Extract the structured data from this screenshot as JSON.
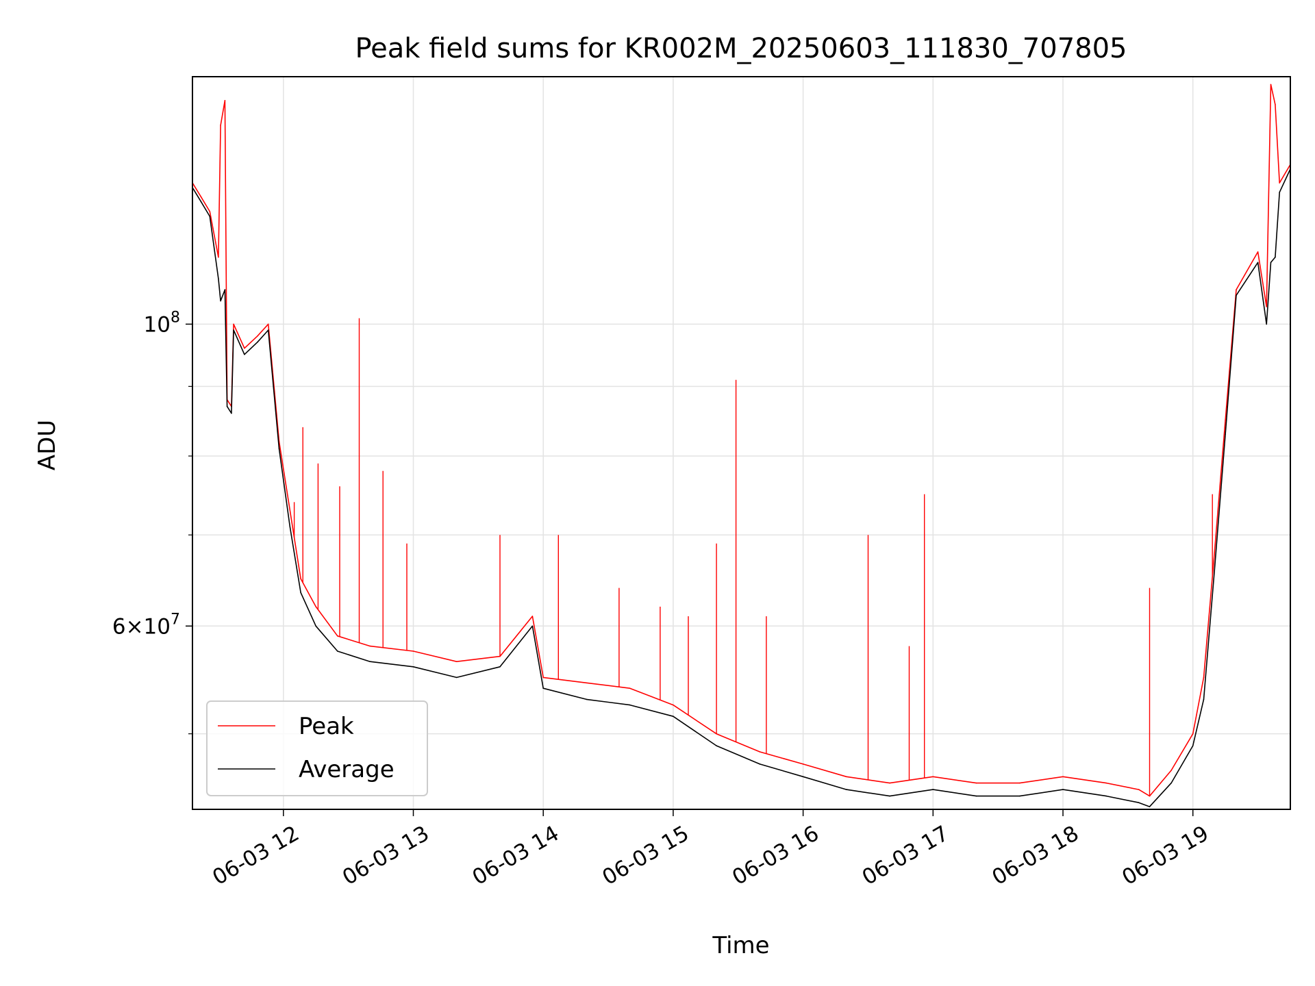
{
  "chart_data": {
    "type": "line",
    "title": "Peak field sums for KR002M_20250603_111830_707805",
    "xlabel": "Time",
    "ylabel": "ADU",
    "y_scale": "log",
    "grid": true,
    "legend_placement": "lower-left",
    "xlim": [
      "2025-06-03 11:18",
      "2025-06-03 19:45"
    ],
    "ylim": [
      44000000,
      152000000
    ],
    "x_ticks": [
      {
        "value": "2025-06-03 12:00",
        "label": "06-03 12"
      },
      {
        "value": "2025-06-03 13:00",
        "label": "06-03 13"
      },
      {
        "value": "2025-06-03 14:00",
        "label": "06-03 14"
      },
      {
        "value": "2025-06-03 15:00",
        "label": "06-03 15"
      },
      {
        "value": "2025-06-03 16:00",
        "label": "06-03 16"
      },
      {
        "value": "2025-06-03 17:00",
        "label": "06-03 17"
      },
      {
        "value": "2025-06-03 18:00",
        "label": "06-03 18"
      },
      {
        "value": "2025-06-03 19:00",
        "label": "06-03 19"
      }
    ],
    "y_ticks_major": [
      {
        "value": 100000000,
        "base": "10",
        "exp": "8",
        "label": "10^8"
      },
      {
        "value": 60000000,
        "mant": "6",
        "base": "10",
        "exp": "7",
        "label": "6×10^7"
      }
    ],
    "y_minor_grid": [
      50000000,
      70000000,
      80000000,
      90000000
    ],
    "series": [
      {
        "name": "Peak",
        "color": "#ff0000",
        "points": [
          [
            "2025-06-03 11:18",
            127000000
          ],
          [
            "2025-06-03 11:22",
            124000000
          ],
          [
            "2025-06-03 11:26",
            121000000
          ],
          [
            "2025-06-03 11:30",
            112000000
          ],
          [
            "2025-06-03 11:31",
            140000000
          ],
          [
            "2025-06-03 11:33",
            146000000
          ],
          [
            "2025-06-03 11:34",
            88000000
          ],
          [
            "2025-06-03 11:36",
            87000000
          ],
          [
            "2025-06-03 11:37",
            100000000
          ],
          [
            "2025-06-03 11:42",
            96000000
          ],
          [
            "2025-06-03 11:48",
            98000000
          ],
          [
            "2025-06-03 11:53",
            100000000
          ],
          [
            "2025-06-03 11:58",
            82000000
          ],
          [
            "2025-06-03 12:03",
            73000000
          ],
          [
            "2025-06-03 12:08",
            65000000
          ],
          [
            "2025-06-03 12:15",
            62000000
          ],
          [
            "2025-06-03 12:25",
            59000000
          ],
          [
            "2025-06-03 12:40",
            58000000
          ],
          [
            "2025-06-03 13:00",
            57500000
          ],
          [
            "2025-06-03 13:20",
            56500000
          ],
          [
            "2025-06-03 13:40",
            57000000
          ],
          [
            "2025-06-03 13:55",
            61000000
          ],
          [
            "2025-06-03 14:00",
            55000000
          ],
          [
            "2025-06-03 14:20",
            54500000
          ],
          [
            "2025-06-03 14:40",
            54000000
          ],
          [
            "2025-06-03 15:00",
            52500000
          ],
          [
            "2025-06-03 15:20",
            50000000
          ],
          [
            "2025-06-03 15:40",
            48500000
          ],
          [
            "2025-06-03 16:00",
            47500000
          ],
          [
            "2025-06-03 16:20",
            46500000
          ],
          [
            "2025-06-03 16:40",
            46000000
          ],
          [
            "2025-06-03 17:00",
            46500000
          ],
          [
            "2025-06-03 17:20",
            46000000
          ],
          [
            "2025-06-03 17:40",
            46000000
          ],
          [
            "2025-06-03 18:00",
            46500000
          ],
          [
            "2025-06-03 18:20",
            46000000
          ],
          [
            "2025-06-03 18:35",
            45500000
          ],
          [
            "2025-06-03 18:40",
            45000000
          ],
          [
            "2025-06-03 18:50",
            47000000
          ],
          [
            "2025-06-03 19:00",
            50000000
          ],
          [
            "2025-06-03 19:05",
            55000000
          ],
          [
            "2025-06-03 19:10",
            68000000
          ],
          [
            "2025-06-03 19:15",
            85000000
          ],
          [
            "2025-06-03 19:20",
            106000000
          ],
          [
            "2025-06-03 19:30",
            113000000
          ],
          [
            "2025-06-03 19:34",
            103000000
          ],
          [
            "2025-06-03 19:36",
            150000000
          ],
          [
            "2025-06-03 19:38",
            145000000
          ],
          [
            "2025-06-03 19:40",
            127000000
          ],
          [
            "2025-06-03 19:45",
            131000000
          ]
        ]
      },
      {
        "name": "Average",
        "color": "#000000",
        "points": [
          [
            "2025-06-03 11:18",
            126000000
          ],
          [
            "2025-06-03 11:22",
            123000000
          ],
          [
            "2025-06-03 11:26",
            120000000
          ],
          [
            "2025-06-03 11:30",
            108000000
          ],
          [
            "2025-06-03 11:31",
            104000000
          ],
          [
            "2025-06-03 11:33",
            106000000
          ],
          [
            "2025-06-03 11:34",
            87000000
          ],
          [
            "2025-06-03 11:36",
            86000000
          ],
          [
            "2025-06-03 11:37",
            99000000
          ],
          [
            "2025-06-03 11:42",
            95000000
          ],
          [
            "2025-06-03 11:48",
            97000000
          ],
          [
            "2025-06-03 11:53",
            99000000
          ],
          [
            "2025-06-03 11:58",
            81000000
          ],
          [
            "2025-06-03 12:03",
            71000000
          ],
          [
            "2025-06-03 12:08",
            63500000
          ],
          [
            "2025-06-03 12:15",
            60000000
          ],
          [
            "2025-06-03 12:25",
            57500000
          ],
          [
            "2025-06-03 12:40",
            56500000
          ],
          [
            "2025-06-03 13:00",
            56000000
          ],
          [
            "2025-06-03 13:20",
            55000000
          ],
          [
            "2025-06-03 13:40",
            56000000
          ],
          [
            "2025-06-03 13:55",
            60000000
          ],
          [
            "2025-06-03 14:00",
            54000000
          ],
          [
            "2025-06-03 14:20",
            53000000
          ],
          [
            "2025-06-03 14:40",
            52500000
          ],
          [
            "2025-06-03 15:00",
            51500000
          ],
          [
            "2025-06-03 15:20",
            49000000
          ],
          [
            "2025-06-03 15:40",
            47500000
          ],
          [
            "2025-06-03 16:00",
            46500000
          ],
          [
            "2025-06-03 16:20",
            45500000
          ],
          [
            "2025-06-03 16:40",
            45000000
          ],
          [
            "2025-06-03 17:00",
            45500000
          ],
          [
            "2025-06-03 17:20",
            45000000
          ],
          [
            "2025-06-03 17:40",
            45000000
          ],
          [
            "2025-06-03 18:00",
            45500000
          ],
          [
            "2025-06-03 18:20",
            45000000
          ],
          [
            "2025-06-03 18:35",
            44500000
          ],
          [
            "2025-06-03 18:40",
            44200000
          ],
          [
            "2025-06-03 18:50",
            46000000
          ],
          [
            "2025-06-03 19:00",
            49000000
          ],
          [
            "2025-06-03 19:05",
            53000000
          ],
          [
            "2025-06-03 19:10",
            66000000
          ],
          [
            "2025-06-03 19:15",
            83000000
          ],
          [
            "2025-06-03 19:20",
            105000000
          ],
          [
            "2025-06-03 19:30",
            111000000
          ],
          [
            "2025-06-03 19:34",
            100000000
          ],
          [
            "2025-06-03 19:36",
            111000000
          ],
          [
            "2025-06-03 19:38",
            112000000
          ],
          [
            "2025-06-03 19:40",
            125000000
          ],
          [
            "2025-06-03 19:45",
            130000000
          ]
        ]
      }
    ],
    "peak_spikes": [
      [
        "2025-06-03 12:05",
        74000000
      ],
      [
        "2025-06-03 12:09",
        84000000
      ],
      [
        "2025-06-03 12:16",
        79000000
      ],
      [
        "2025-06-03 12:26",
        76000000
      ],
      [
        "2025-06-03 12:35",
        101000000
      ],
      [
        "2025-06-03 12:46",
        78000000
      ],
      [
        "2025-06-03 12:57",
        69000000
      ],
      [
        "2025-06-03 13:40",
        70000000
      ],
      [
        "2025-06-03 14:07",
        70000000
      ],
      [
        "2025-06-03 14:35",
        64000000
      ],
      [
        "2025-06-03 14:54",
        62000000
      ],
      [
        "2025-06-03 15:07",
        61000000
      ],
      [
        "2025-06-03 15:20",
        69000000
      ],
      [
        "2025-06-03 15:29",
        91000000
      ],
      [
        "2025-06-03 15:43",
        61000000
      ],
      [
        "2025-06-03 16:30",
        70000000
      ],
      [
        "2025-06-03 16:49",
        58000000
      ],
      [
        "2025-06-03 16:56",
        75000000
      ],
      [
        "2025-06-03 18:40",
        64000000
      ],
      [
        "2025-06-03 19:09",
        75000000
      ],
      [
        "2025-06-03 19:36",
        150000000
      ]
    ]
  },
  "legend": {
    "peak_label": "Peak",
    "average_label": "Average"
  }
}
